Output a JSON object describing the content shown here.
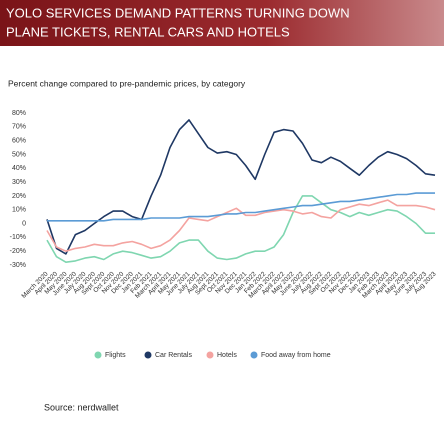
{
  "header": {
    "title_line1": "YOLO SERVICES DEMAND PATTERNS TURNING DOWN",
    "title_line2": "PLANE TICKETS, RENTAL CARS AND HOTELS"
  },
  "chart_data": {
    "type": "line",
    "subtitle": "Percent change compared to pre-pandemic prices, by category",
    "categories": [
      "March 2020",
      "April 2020",
      "May 2020",
      "June 2020",
      "July 2020",
      "Aug 2020",
      "Sept 2020",
      "Oct 2020",
      "Nov 2020",
      "Dec 2020",
      "Jan 2021",
      "Feb 2021",
      "March 2021",
      "April 2021",
      "May 2021",
      "June 2021",
      "July 2021",
      "Aug 2021",
      "Sept 2021",
      "Oct 2021",
      "Nov 2021",
      "Dec 2021",
      "Jan 2022",
      "Feb 2022",
      "March 2022",
      "April 2022",
      "May 2022",
      "June 2022",
      "July 2022",
      "Aug 2022",
      "Sept 2022",
      "Oct 2022",
      "Nov 2022",
      "Dec 2022",
      "Jan 2023",
      "Feb 2023",
      "March 2023",
      "April 2023",
      "May 2023",
      "June 2023",
      "July 2023",
      "Aug 2023"
    ],
    "series": [
      {
        "name": "Flights",
        "color": "#7fd6b0",
        "values": [
          -12,
          -24,
          -28,
          -27,
          -25,
          -24,
          -26,
          -22,
          -20,
          -21,
          -23,
          -25,
          -24,
          -20,
          -14,
          -12,
          -12,
          -20,
          -25,
          -26,
          -25,
          -22,
          -20,
          -20,
          -17,
          -8,
          8,
          20,
          20,
          15,
          10,
          8,
          5,
          8,
          6,
          8,
          10,
          9,
          5,
          0,
          -7,
          -7
        ]
      },
      {
        "name": "Car Rentals",
        "color": "#1f3864",
        "values": [
          3,
          -18,
          -22,
          -8,
          -5,
          0,
          5,
          9,
          9,
          5,
          3,
          20,
          35,
          55,
          68,
          75,
          65,
          55,
          51,
          52,
          50,
          42,
          32,
          50,
          66,
          68,
          67,
          58,
          46,
          44,
          48,
          45,
          40,
          35,
          42,
          48,
          52,
          50,
          47,
          42,
          36,
          35
        ]
      },
      {
        "name": "Hotels",
        "color": "#f4a3a0",
        "values": [
          -5,
          -17,
          -20,
          -18,
          -17,
          -15,
          -16,
          -16,
          -14,
          -13,
          -15,
          -18,
          -16,
          -12,
          -5,
          4,
          3,
          2,
          5,
          8,
          11,
          6,
          6,
          8,
          9,
          10,
          9,
          7,
          8,
          5,
          4,
          10,
          12,
          14,
          13,
          15,
          17,
          13,
          13,
          13,
          12,
          10
        ]
      },
      {
        "name": "Food away from home",
        "color": "#5b9bd5",
        "values": [
          2,
          2,
          2,
          2,
          2,
          2,
          2,
          3,
          3,
          3,
          3,
          4,
          4,
          4,
          4,
          5,
          5,
          5,
          6,
          7,
          7,
          8,
          8,
          9,
          10,
          11,
          12,
          13,
          13,
          14,
          15,
          16,
          16,
          17,
          18,
          19,
          20,
          21,
          21,
          22,
          22,
          22
        ]
      }
    ],
    "ylim": [
      -30,
      80
    ],
    "yticks": [
      {
        "value": 80,
        "label": "80%"
      },
      {
        "value": 70,
        "label": "70%"
      },
      {
        "value": 60,
        "label": "60%"
      },
      {
        "value": 50,
        "label": "50%"
      },
      {
        "value": 40,
        "label": "40%"
      },
      {
        "value": 30,
        "label": "30%"
      },
      {
        "value": 20,
        "label": "20%"
      },
      {
        "value": 10,
        "label": "10%"
      },
      0,
      {
        "value": -10,
        "label": "-10%"
      },
      {
        "value": -20,
        "label": "-20%"
      },
      {
        "value": -30,
        "label": "-30%"
      }
    ],
    "grid": false,
    "legend": "bottom",
    "source": "Source:  nerdwallet"
  }
}
